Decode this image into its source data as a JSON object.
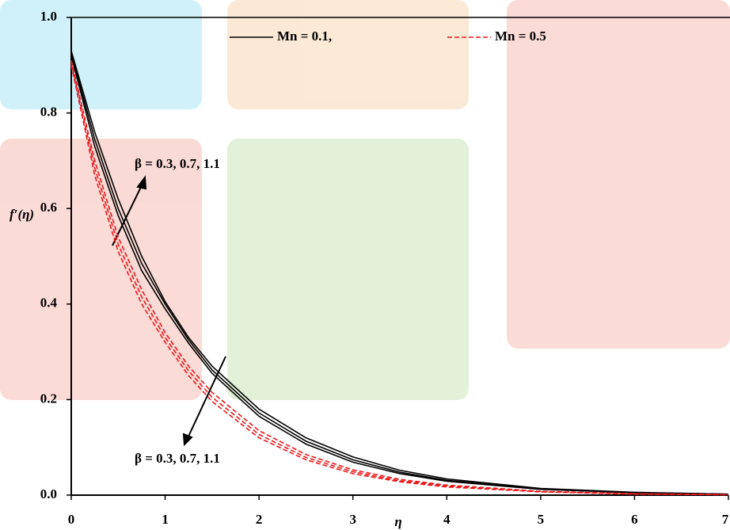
{
  "chart_data": {
    "type": "line",
    "xlabel": "η",
    "ylabel": "f′(η)",
    "x": [
      0,
      0.25,
      0.5,
      0.75,
      1,
      1.25,
      1.5,
      2,
      2.5,
      3,
      3.5,
      4,
      5,
      6,
      7
    ],
    "series": [
      {
        "name": "Mn = 0.1,",
        "color": "#000000",
        "dashed": false,
        "lines": [
          [
            0.93,
            0.76,
            0.62,
            0.5,
            0.405,
            0.33,
            0.27,
            0.18,
            0.12,
            0.08,
            0.052,
            0.034,
            0.014,
            0.006,
            0.002
          ],
          [
            0.925,
            0.745,
            0.6,
            0.485,
            0.4,
            0.325,
            0.262,
            0.172,
            0.113,
            0.074,
            0.048,
            0.031,
            0.013,
            0.005,
            0.002
          ],
          [
            0.92,
            0.73,
            0.585,
            0.47,
            0.39,
            0.318,
            0.255,
            0.165,
            0.107,
            0.069,
            0.045,
            0.029,
            0.012,
            0.005,
            0.002
          ]
        ]
      },
      {
        "name": "Mn = 0.5",
        "color": "#e8191c",
        "dashed": true,
        "lines": [
          [
            0.91,
            0.7,
            0.54,
            0.43,
            0.34,
            0.27,
            0.215,
            0.135,
            0.085,
            0.053,
            0.033,
            0.021,
            0.008,
            0.003,
            0.001
          ],
          [
            0.905,
            0.685,
            0.525,
            0.415,
            0.33,
            0.26,
            0.205,
            0.127,
            0.079,
            0.049,
            0.03,
            0.019,
            0.007,
            0.003,
            0.001
          ],
          [
            0.9,
            0.67,
            0.51,
            0.4,
            0.32,
            0.25,
            0.196,
            0.12,
            0.074,
            0.045,
            0.028,
            0.017,
            0.007,
            0.002,
            0.001
          ]
        ]
      }
    ],
    "annotations": [
      "β = 0.3, 0.7, 1.1",
      "β = 0.3, 0.7, 1.1"
    ],
    "xlim": [
      0,
      7
    ],
    "xticks": [
      0,
      1,
      2,
      3,
      4,
      5,
      6,
      7
    ],
    "ylim": [
      0,
      1
    ],
    "yticks": [
      {
        "value": 0,
        "label": "0.0"
      },
      0.2,
      0.4,
      0.6,
      0.8,
      {
        "value": 1,
        "label": "1.0"
      }
    ]
  }
}
